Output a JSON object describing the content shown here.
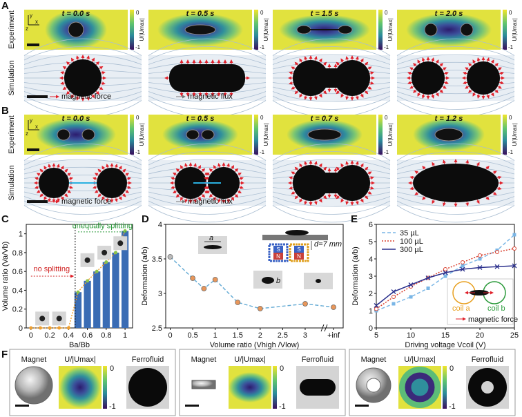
{
  "panels": {
    "A": {
      "label": "A",
      "rows": [
        "Experiment",
        "Simulation"
      ],
      "axes": [
        "y",
        "z",
        "x"
      ],
      "frames": [
        {
          "time": "t = 0.0 s",
          "cbar_max": "0",
          "cbar_min": "-1",
          "cbar_label": "U/|Umax|"
        },
        {
          "time": "t = 0.5 s",
          "cbar_max": "0",
          "cbar_min": "-1",
          "cbar_label": "U/|Umax|"
        },
        {
          "time": "t = 1.5 s",
          "cbar_max": "0",
          "cbar_min": "-1",
          "cbar_label": "U/|Umax|"
        },
        {
          "time": "t = 2.0 s",
          "cbar_max": "0",
          "cbar_min": "-1",
          "cbar_label": "U/|Umax|"
        }
      ],
      "legend": [
        "magnetic force",
        "magnetic flux"
      ]
    },
    "B": {
      "label": "B",
      "rows": [
        "Experiment",
        "Simulation"
      ],
      "axes": [
        "y",
        "z",
        "x"
      ],
      "frames": [
        {
          "time": "t = 0.0 s",
          "cbar_max": "0",
          "cbar_min": "-1",
          "cbar_label": "U/|Umax|"
        },
        {
          "time": "t = 0.5 s",
          "cbar_max": "0",
          "cbar_min": "-1",
          "cbar_label": "U/|Umax|"
        },
        {
          "time": "t = 0.7 s",
          "cbar_max": "0",
          "cbar_min": "-1",
          "cbar_label": "U/|Umax|"
        },
        {
          "time": "t = 1.2 s",
          "cbar_max": "0",
          "cbar_min": "-1",
          "cbar_label": "U/|Umax|"
        }
      ],
      "legend": [
        "magnetic force",
        "magnetic flux"
      ]
    },
    "F": {
      "label": "F",
      "groups": [
        {
          "magnet": "Magnet",
          "field": "U/|Umax|",
          "ferrofluid": "Ferrofluid",
          "cbar_max": "0",
          "cbar_min": "-1"
        },
        {
          "magnet": "Magnet",
          "field": "U/|Umax|",
          "ferrofluid": "Ferrofluid",
          "cbar_max": "0",
          "cbar_min": "-1"
        },
        {
          "magnet": "Magnet",
          "field": "U/|Umax|",
          "ferrofluid": "Ferrofluid",
          "cbar_max": "0",
          "cbar_min": "-1"
        }
      ]
    }
  },
  "chart_data": [
    {
      "panel": "C",
      "type": "bar",
      "x_label": "Ba/Bb",
      "y_label": "Volume ratio (Va/Vb)",
      "x": [
        0,
        0.1,
        0.2,
        0.3,
        0.4,
        0.5,
        0.6,
        0.7,
        0.8,
        0.9,
        1
      ],
      "values": [
        0,
        0,
        0,
        0,
        0,
        0.38,
        0.5,
        0.6,
        0.7,
        0.8,
        1.03
      ],
      "color": "#3a6cb4",
      "line_color": "#f0a030",
      "xlim": [
        -0.05,
        1.08
      ],
      "xticks": [
        0,
        0.2,
        0.4,
        0.6,
        0.8,
        1
      ],
      "ylim": [
        0,
        1.1
      ],
      "yticks": [
        0,
        0.2,
        0.4,
        0.6,
        0.8,
        1
      ],
      "annotations": [
        "no splitting",
        "unequally splitting"
      ]
    },
    {
      "panel": "D",
      "type": "line",
      "x_label": "Volume ratio (Vhigh /Vlow)",
      "y_label": "Deformation (a/b)",
      "x": [
        0,
        0.5,
        0.75,
        1,
        1.5,
        2,
        3,
        "+inf"
      ],
      "values": [
        3.53,
        3.22,
        3.07,
        3.2,
        2.87,
        2.78,
        2.85,
        2.8
      ],
      "color": "#6aaed6",
      "marker_color": "#e8965a",
      "xlim": [
        -0.1,
        3.2
      ],
      "xticks": [
        0,
        0.5,
        1,
        1.5,
        2,
        2.5,
        3,
        "+inf"
      ],
      "ylim": [
        2.5,
        4
      ],
      "yticks": [
        2.5,
        3,
        3.5,
        4
      ],
      "annotations": [
        "d=7 mm",
        "a",
        "b"
      ],
      "magnet_labels": [
        "S",
        "N",
        "S",
        "N"
      ]
    },
    {
      "panel": "E",
      "type": "line",
      "x_label": "Driving voltage Vcoil (V)",
      "y_label": "Deformation (a/b)",
      "x": [
        5,
        7.5,
        10,
        12.5,
        15,
        17.5,
        20,
        22.5,
        25
      ],
      "series": [
        {
          "name": "35 µL",
          "color": "#7ab6e6",
          "dash": "5,3",
          "values": [
            1.0,
            1.4,
            1.8,
            2.3,
            3.0,
            3.6,
            4.0,
            4.5,
            5.4
          ]
        },
        {
          "name": "100 µL",
          "color": "#d9402e",
          "dash": "2,2",
          "values": [
            1.1,
            1.8,
            2.4,
            2.9,
            3.4,
            3.8,
            4.2,
            4.4,
            4.6
          ]
        },
        {
          "name": "300 µL",
          "color": "#2a2f8c",
          "dash": "none",
          "values": [
            1.3,
            2.1,
            2.5,
            2.9,
            3.2,
            3.4,
            3.5,
            3.55,
            3.6
          ]
        }
      ],
      "xlim": [
        5,
        25
      ],
      "xticks": [
        5,
        10,
        15,
        20,
        25
      ],
      "ylim": [
        0,
        6
      ],
      "yticks": [
        0,
        1,
        2,
        3,
        4,
        5,
        6
      ],
      "annotations": [
        "coil a",
        "coil b",
        "magnetic force"
      ]
    }
  ]
}
